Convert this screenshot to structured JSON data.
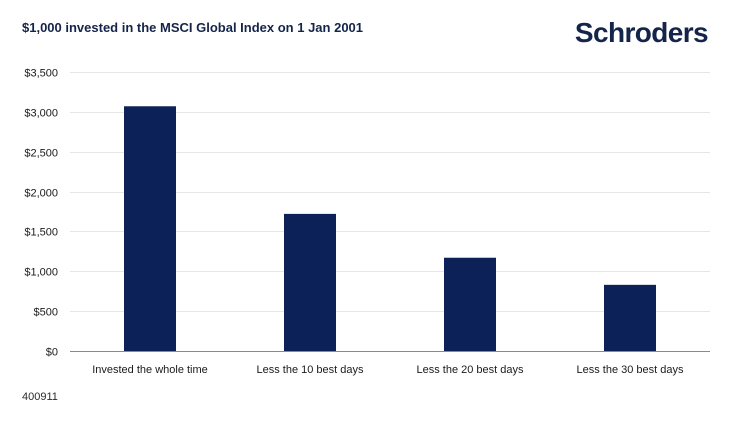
{
  "header": {
    "title": "$1,000 invested in the MSCI Global Index on 1 Jan 2001",
    "logo_text": "Schroders"
  },
  "footer": {
    "code": "400911"
  },
  "colors": {
    "bar": "#0b2157",
    "grid": "#e6e6e6",
    "axis": "#8a8a8a",
    "title": "#14244a"
  },
  "chart_data": {
    "type": "bar",
    "title": "$1,000 invested in the MSCI Global Index on 1 Jan 2001",
    "xlabel": "",
    "ylabel": "",
    "categories": [
      "Invested the whole time",
      "Less the 10 best days",
      "Less the 20 best days",
      "Less the 30 best days"
    ],
    "values": [
      3070,
      1720,
      1170,
      830
    ],
    "ylim": [
      0,
      3500
    ],
    "yticks": [
      0,
      500,
      1000,
      1500,
      2000,
      2500,
      3000,
      3500
    ],
    "ytick_labels": [
      "$0",
      "$500",
      "$1,000",
      "$1,500",
      "$2,000",
      "$2,500",
      "$3,000",
      "$3,500"
    ],
    "grid": true,
    "legend": "none"
  }
}
